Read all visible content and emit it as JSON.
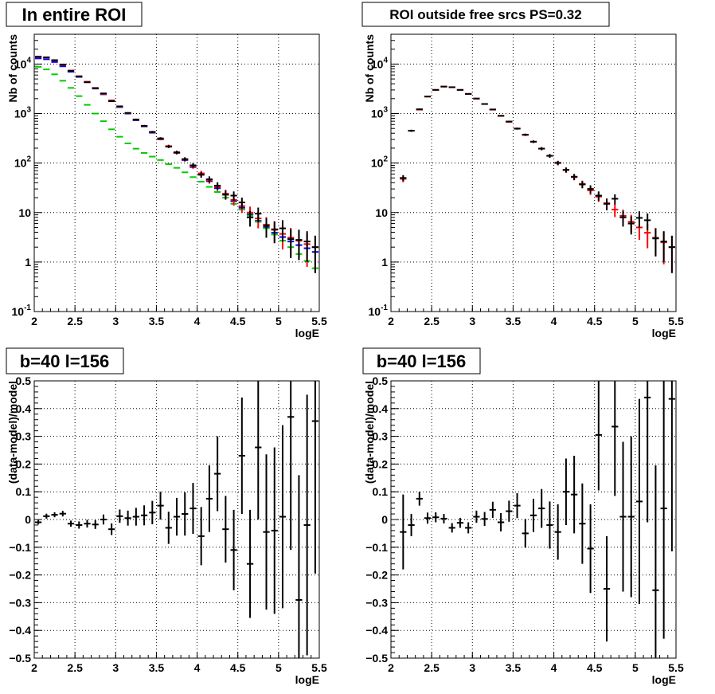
{
  "chart_data": [
    {
      "type": "scatter",
      "title": "In entire ROI",
      "xlabel": "logE",
      "ylabel": "Nb of counts",
      "log_y": true,
      "xlim": [
        2,
        5.5
      ],
      "ylim": [
        0.1,
        40000
      ],
      "grid": true,
      "x_ticks": [
        "2",
        "2.5",
        "3",
        "3.5",
        "4",
        "4.5",
        "5",
        "5.5"
      ],
      "y_ticks": [
        "10^-1",
        "1",
        "10",
        "10^2",
        "10^3",
        "10^4"
      ],
      "series": [
        {
          "color": "#0000ff",
          "x": [
            2.05,
            2.15,
            2.25,
            2.35,
            2.45,
            2.55,
            2.65,
            2.75,
            2.85,
            2.95,
            3.05,
            3.15,
            3.25,
            3.35,
            3.45,
            3.55,
            3.65,
            3.75,
            3.85,
            3.95,
            4.05,
            4.15,
            4.25,
            4.35,
            4.45,
            4.55,
            4.65,
            4.75,
            4.85,
            4.95,
            5.05,
            5.15,
            5.25,
            5.35,
            5.45
          ],
          "y": [
            13000,
            12500,
            11000,
            9000,
            7000,
            5500,
            4300,
            3200,
            2450,
            1800,
            1350,
            1000,
            730,
            550,
            410,
            300,
            215,
            160,
            115,
            83,
            60,
            43,
            31,
            23,
            17,
            12.5,
            9.2,
            6.8,
            5.0,
            3.9,
            3.2,
            2.6,
            2.2,
            1.9,
            1.6
          ],
          "err": [
            0,
            0,
            0,
            0,
            0,
            0,
            0,
            0,
            0,
            0,
            0,
            0,
            0,
            0,
            0,
            0,
            0,
            0,
            0,
            0,
            0,
            0,
            0,
            0,
            0,
            0,
            0,
            0,
            0,
            0,
            0,
            0,
            0,
            0,
            0
          ]
        },
        {
          "color": "#00cc00",
          "x": [
            2.05,
            2.15,
            2.25,
            2.35,
            2.45,
            2.55,
            2.65,
            2.75,
            2.85,
            2.95,
            3.05,
            3.15,
            3.25,
            3.35,
            3.45,
            3.55,
            3.65,
            3.75,
            3.85,
            3.95,
            4.05,
            4.15,
            4.25,
            4.35,
            4.45,
            4.55,
            4.65,
            4.75,
            4.85,
            4.95,
            5.05,
            5.15,
            5.25,
            5.35,
            5.45
          ],
          "y": [
            8800,
            7800,
            6200,
            4600,
            3300,
            2250,
            1500,
            1000,
            700,
            480,
            340,
            250,
            195,
            160,
            135,
            115,
            95,
            80,
            65,
            52,
            42,
            33,
            26,
            20,
            15,
            11.5,
            8.7,
            6.5,
            4.8,
            3.6,
            2.7,
            2.0,
            1.45,
            1.05,
            0.75
          ],
          "err": [
            0,
            0,
            0,
            0,
            0,
            0,
            0,
            0,
            0,
            0,
            0,
            0,
            0,
            0,
            0,
            0,
            0,
            0,
            0,
            0,
            0,
            0,
            0,
            0,
            0,
            0,
            0,
            0,
            0,
            0,
            0,
            0,
            0,
            0,
            0
          ]
        },
        {
          "color": "#ff0000",
          "x": [
            2.05,
            2.15,
            2.25,
            2.35,
            2.45,
            2.55,
            2.65,
            2.75,
            2.85,
            2.95,
            3.05,
            3.15,
            3.25,
            3.35,
            3.45,
            3.55,
            3.65,
            3.75,
            3.85,
            3.95,
            4.05,
            4.15,
            4.25,
            4.35,
            4.45,
            4.55,
            4.65,
            4.75,
            4.85,
            4.95,
            5.05,
            5.15,
            5.25,
            5.35,
            5.45
          ],
          "y": [
            14200,
            13500,
            11800,
            9600,
            7400,
            5700,
            4400,
            3300,
            2500,
            1850,
            1380,
            1020,
            750,
            560,
            420,
            305,
            220,
            162,
            118,
            86,
            62,
            45,
            33,
            24,
            18,
            13.5,
            10,
            7.6,
            5.7,
            4.6,
            3.7,
            3.1,
            2.7,
            2.3,
            2.0
          ],
          "err": [
            120,
            116,
            109,
            98,
            86,
            75,
            66,
            57,
            50,
            43,
            37,
            32,
            27,
            24,
            20,
            17,
            15,
            13,
            11,
            9.3,
            7.9,
            6.7,
            5.7,
            4.9,
            4.2,
            3.7,
            3.2,
            2.8,
            2.4,
            2.1,
            1.9,
            1.8,
            1.6,
            1.5,
            1.4
          ]
        },
        {
          "color": "#000000",
          "x": [
            2.05,
            2.15,
            2.25,
            2.35,
            2.45,
            2.55,
            2.65,
            2.75,
            2.85,
            2.95,
            3.05,
            3.15,
            3.25,
            3.35,
            3.45,
            3.55,
            3.65,
            3.75,
            3.85,
            3.95,
            4.05,
            4.15,
            4.25,
            4.35,
            4.45,
            4.55,
            4.65,
            4.75,
            4.85,
            4.95,
            5.05,
            5.15,
            5.25,
            5.35,
            5.45
          ],
          "y": [
            14000,
            13700,
            12000,
            9800,
            7300,
            5600,
            4300,
            3250,
            2550,
            1780,
            1400,
            1030,
            760,
            565,
            425,
            315,
            215,
            165,
            120,
            90,
            58,
            47,
            35,
            23,
            22,
            16,
            8,
            9.5,
            5.4,
            4.5,
            4.8,
            2.9,
            2.8,
            2.6,
            2.0
          ],
          "err": [
            118,
            117,
            110,
            99,
            85,
            75,
            66,
            57,
            50,
            42,
            37,
            32,
            28,
            24,
            21,
            18,
            15,
            13,
            11,
            9.5,
            7.6,
            6.9,
            5.9,
            4.8,
            4.7,
            4,
            2.8,
            3.1,
            2.3,
            2.1,
            2.2,
            1.7,
            1.7,
            1.6,
            1.4
          ]
        }
      ]
    },
    {
      "type": "scatter",
      "title": "ROI outside free srcs PS=0.32",
      "xlabel": "logE",
      "ylabel": "Nb of counts",
      "log_y": true,
      "xlim": [
        2,
        5.5
      ],
      "ylim": [
        0.1,
        40000
      ],
      "grid": true,
      "x_ticks": [
        "2",
        "2.5",
        "3",
        "3.5",
        "4",
        "4.5",
        "5",
        "5.5"
      ],
      "y_ticks": [
        "10^-1",
        "1",
        "10",
        "10^2",
        "10^3",
        "10^4"
      ],
      "series": [
        {
          "color": "#ff0000",
          "x": [
            2.15,
            2.25,
            2.35,
            2.45,
            2.55,
            2.65,
            2.75,
            2.85,
            2.95,
            3.05,
            3.15,
            3.25,
            3.35,
            3.45,
            3.55,
            3.65,
            3.75,
            3.85,
            3.95,
            4.05,
            4.15,
            4.25,
            4.35,
            4.45,
            4.55,
            4.65,
            4.75,
            4.85,
            4.95,
            5.05,
            5.15,
            5.25,
            5.35,
            5.45
          ],
          "y": [
            48,
            450,
            1200,
            2200,
            3000,
            3500,
            3400,
            3000,
            2500,
            2000,
            1560,
            1200,
            900,
            680,
            500,
            370,
            270,
            195,
            140,
            100,
            72,
            52,
            38,
            28,
            21,
            15.5,
            11.5,
            8.6,
            6.5,
            5.0,
            3.9,
            3.1,
            2.5,
            2.0
          ],
          "err": [
            7,
            21,
            35,
            47,
            55,
            59,
            58,
            55,
            50,
            45,
            39,
            35,
            30,
            26,
            22,
            19,
            16,
            14,
            12,
            10,
            8.5,
            7.2,
            6.2,
            5.3,
            4.6,
            3.9,
            3.4,
            2.9,
            2.5,
            2.2,
            2.0,
            1.8,
            1.6,
            1.4
          ]
        },
        {
          "color": "#000000",
          "x": [
            2.15,
            2.25,
            2.35,
            2.45,
            2.55,
            2.65,
            2.75,
            2.85,
            2.95,
            3.05,
            3.15,
            3.25,
            3.35,
            3.45,
            3.55,
            3.65,
            3.75,
            3.85,
            3.95,
            4.05,
            4.15,
            4.25,
            4.35,
            4.45,
            4.55,
            4.65,
            4.75,
            4.85,
            4.95,
            5.05,
            5.15,
            5.25,
            5.35,
            5.45
          ],
          "y": [
            50,
            450,
            1220,
            2210,
            3010,
            3510,
            3410,
            3010,
            2490,
            2010,
            1560,
            1210,
            900,
            690,
            495,
            375,
            270,
            196,
            140,
            101,
            73,
            53,
            37,
            30,
            22,
            15,
            19,
            8,
            6,
            7.8,
            7,
            3,
            2.6,
            2.0
          ],
          "err": [
            7,
            21,
            35,
            47,
            55,
            59,
            58,
            55,
            50,
            45,
            39,
            35,
            30,
            26,
            22,
            19,
            16,
            14,
            12,
            10,
            8.5,
            7.3,
            6.1,
            5.5,
            4.7,
            3.9,
            4.4,
            2.8,
            2.4,
            2.8,
            2.6,
            1.7,
            1.6,
            1.4
          ]
        }
      ]
    },
    {
      "type": "scatter",
      "title": "b=40 l=156",
      "xlabel": "logE",
      "ylabel": "(data-model)/model",
      "log_y": false,
      "xlim": [
        2,
        5.5
      ],
      "ylim": [
        -0.5,
        0.5
      ],
      "grid": true,
      "x_ticks": [
        "2",
        "2.5",
        "3",
        "3.5",
        "4",
        "4.5",
        "5",
        "5.5"
      ],
      "y_ticks": [
        "−0.5",
        "−0.4",
        "−0.3",
        "−0.2",
        "−0.1",
        "0",
        "0.1",
        "0.2",
        "0.3",
        "0.4",
        "0.5"
      ],
      "series": [
        {
          "color": "#000000",
          "x": [
            2.05,
            2.15,
            2.25,
            2.35,
            2.45,
            2.55,
            2.65,
            2.75,
            2.85,
            2.95,
            3.05,
            3.15,
            3.25,
            3.35,
            3.45,
            3.55,
            3.65,
            3.75,
            3.85,
            3.95,
            4.05,
            4.15,
            4.25,
            4.35,
            4.45,
            4.55,
            4.65,
            4.75,
            4.85,
            4.95,
            5.05,
            5.15,
            5.25,
            5.35,
            5.45
          ],
          "y": [
            -0.01,
            0.012,
            0.017,
            0.021,
            -0.015,
            -0.02,
            -0.015,
            -0.018,
            0.0,
            -0.035,
            0.012,
            0.005,
            0.01,
            0.015,
            0.025,
            0.05,
            -0.03,
            0.01,
            0.02,
            0.04,
            -0.06,
            0.075,
            0.165,
            -0.035,
            -0.11,
            0.23,
            -0.16,
            0.26,
            -0.045,
            -0.04,
            0.01,
            0.37,
            -0.29,
            -0.02,
            0.355
          ],
          "err": [
            0.008,
            0.009,
            0.009,
            0.01,
            0.011,
            0.013,
            0.014,
            0.016,
            0.018,
            0.021,
            0.024,
            0.027,
            0.032,
            0.036,
            0.042,
            0.05,
            0.058,
            0.068,
            0.078,
            0.092,
            0.105,
            0.12,
            0.135,
            0.12,
            0.145,
            0.21,
            0.195,
            0.26,
            0.28,
            0.3,
            0.33,
            0.48,
            0.45,
            0.47,
            0.55
          ]
        }
      ]
    },
    {
      "type": "scatter",
      "title": "b=40 l=156",
      "xlabel": "logE",
      "ylabel": "(data-model)/model",
      "log_y": false,
      "xlim": [
        2,
        5.5
      ],
      "ylim": [
        -0.5,
        0.5
      ],
      "grid": true,
      "x_ticks": [
        "2",
        "2.5",
        "3",
        "3.5",
        "4",
        "4.5",
        "5",
        "5.5"
      ],
      "y_ticks": [
        "−0.5",
        "−0.4",
        "−0.3",
        "−0.2",
        "−0.1",
        "0",
        "0.1",
        "0.2",
        "0.3",
        "0.4",
        "0.5"
      ],
      "series": [
        {
          "color": "#000000",
          "x": [
            2.15,
            2.25,
            2.35,
            2.45,
            2.55,
            2.65,
            2.75,
            2.85,
            2.95,
            3.05,
            3.15,
            3.25,
            3.35,
            3.45,
            3.55,
            3.65,
            3.75,
            3.85,
            3.95,
            4.05,
            4.15,
            4.25,
            4.35,
            4.45,
            4.55,
            4.65,
            4.75,
            4.85,
            4.95,
            5.05,
            5.15,
            5.25,
            5.35,
            5.45
          ],
          "y": [
            -0.045,
            -0.02,
            0.075,
            0.005,
            0.008,
            0.003,
            -0.03,
            -0.012,
            -0.03,
            0.01,
            0.002,
            0.035,
            -0.01,
            0.03,
            0.05,
            -0.05,
            0.015,
            0.04,
            -0.02,
            -0.045,
            0.1,
            0.09,
            -0.015,
            -0.105,
            0.305,
            -0.25,
            0.335,
            0.01,
            0.01,
            0.065,
            0.44,
            -0.255,
            0.04,
            0.435
          ],
          "err": [
            0.135,
            0.04,
            0.025,
            0.02,
            0.018,
            0.017,
            0.017,
            0.018,
            0.02,
            0.022,
            0.025,
            0.029,
            0.033,
            0.038,
            0.045,
            0.052,
            0.06,
            0.07,
            0.085,
            0.1,
            0.12,
            0.14,
            0.145,
            0.16,
            0.2,
            0.19,
            0.25,
            0.27,
            0.29,
            0.37,
            0.45,
            0.45,
            0.47,
            0.55
          ]
        }
      ]
    }
  ]
}
